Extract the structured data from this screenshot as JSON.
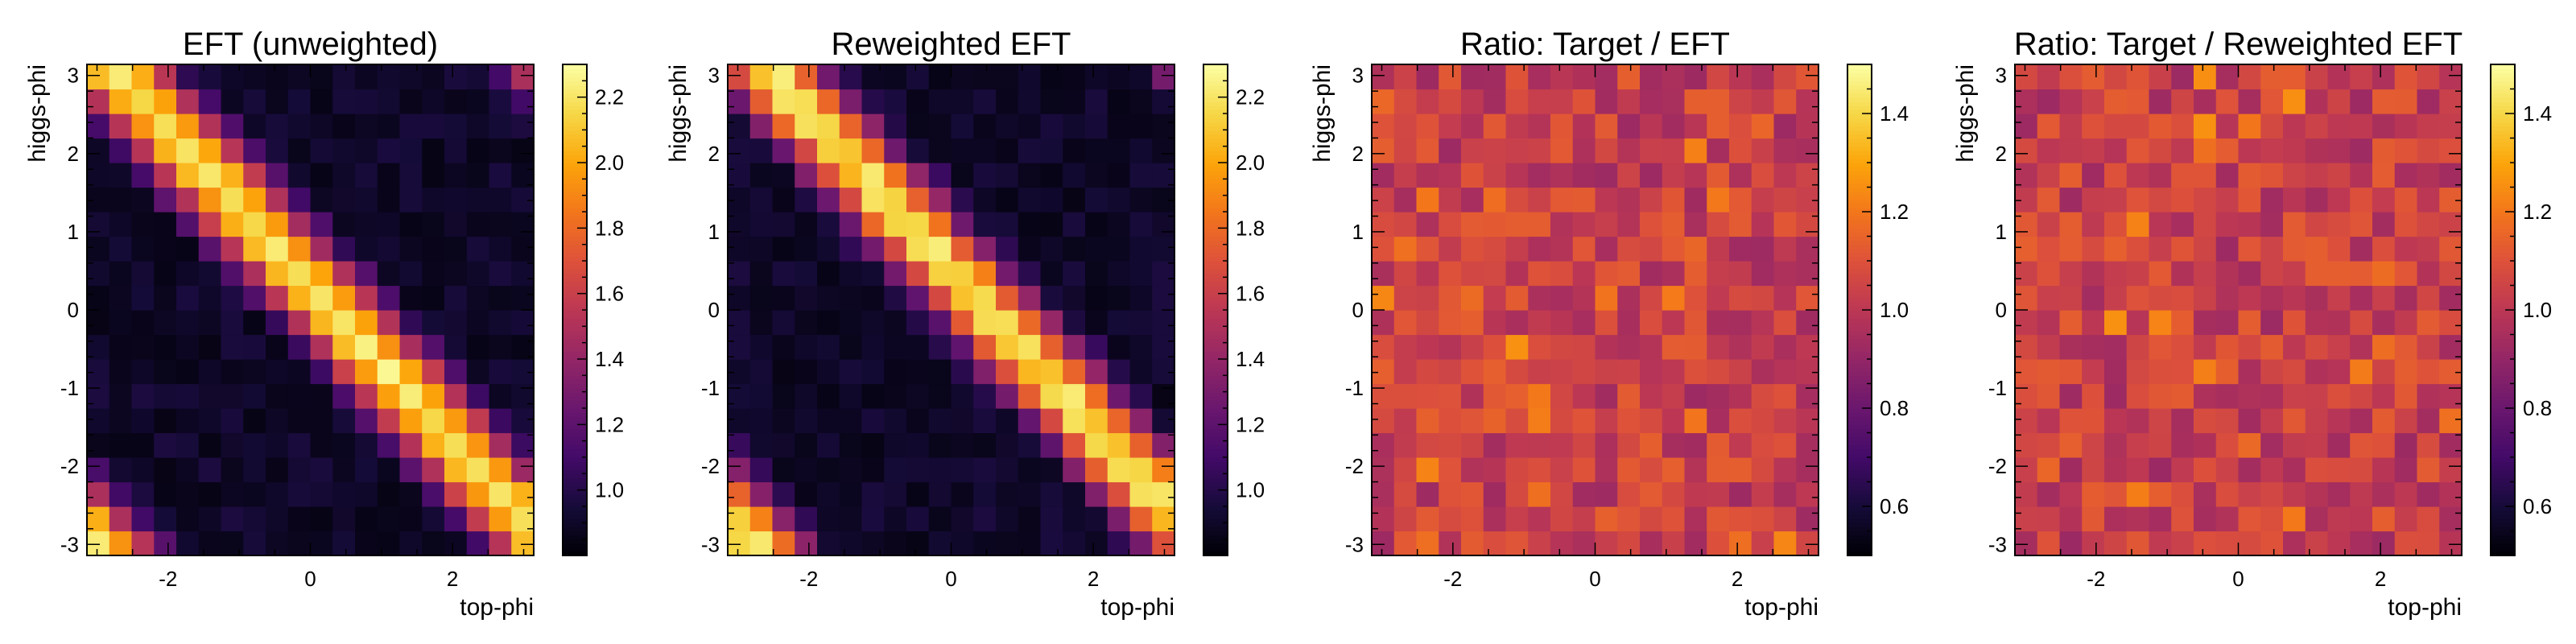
{
  "chart_data": [
    {
      "type": "heatmap",
      "title": "EFT (unweighted)",
      "xlabel": "top-phi",
      "ylabel": "higgs-phi",
      "xlim": [
        -3.14159,
        3.14159
      ],
      "ylim": [
        -3.14159,
        3.14159
      ],
      "x_ticks": [
        -2,
        0,
        2
      ],
      "y_ticks": [
        -3,
        -2,
        -1,
        0,
        1,
        2,
        3
      ],
      "bins": [
        20,
        20
      ],
      "grid": false,
      "colorbar": {
        "colormap": "inferno",
        "zlim": [
          0.8,
          2.3
        ],
        "ticks": [
          1.0,
          1.2,
          1.4,
          1.6,
          1.8,
          2.0,
          2.2
        ]
      },
      "z_model": "z = 0.8 + 1.4 * exp(-(wrap(higgs_phi + top_phi - 0.3))^2 / 0.6); per-bin noise about ±0.08"
    },
    {
      "type": "heatmap",
      "title": "Reweighted EFT",
      "xlabel": "top-phi",
      "ylabel": "higgs-phi",
      "xlim": [
        -3.14159,
        3.14159
      ],
      "ylim": [
        -3.14159,
        3.14159
      ],
      "x_ticks": [
        -2,
        0,
        2
      ],
      "y_ticks": [
        -3,
        -2,
        -1,
        0,
        1,
        2,
        3
      ],
      "bins": [
        20,
        20
      ],
      "grid": false,
      "colorbar": {
        "colormap": "inferno",
        "zlim": [
          0.8,
          2.3
        ],
        "ticks": [
          1.0,
          1.2,
          1.4,
          1.6,
          1.8,
          2.0,
          2.2
        ]
      },
      "z_model": "same band as unweighted, shifted about -0.2 rad in top-phi"
    },
    {
      "type": "heatmap",
      "title": "Ratio: Target / EFT",
      "xlabel": "top-phi",
      "ylabel": "higgs-phi",
      "xlim": [
        -3.14159,
        3.14159
      ],
      "ylim": [
        -3.14159,
        3.14159
      ],
      "x_ticks": [
        -2,
        0,
        2
      ],
      "y_ticks": [
        -3,
        -2,
        -1,
        0,
        1,
        2,
        3
      ],
      "bins": [
        20,
        20
      ],
      "grid": false,
      "colorbar": {
        "colormap": "inferno",
        "zlim": [
          0.5,
          1.5
        ],
        "ticks": [
          0.6,
          0.8,
          1.0,
          1.2,
          1.4
        ]
      },
      "z_model": "ratio about 1.0 with per-bin noise between 0.9 and 1.2"
    },
    {
      "type": "heatmap",
      "title": "Ratio: Target / Reweighted EFT",
      "xlabel": "top-phi",
      "ylabel": "higgs-phi",
      "xlim": [
        -3.14159,
        3.14159
      ],
      "ylim": [
        -3.14159,
        3.14159
      ],
      "x_ticks": [
        -2,
        0,
        2
      ],
      "y_ticks": [
        -3,
        -2,
        -1,
        0,
        1,
        2,
        3
      ],
      "bins": [
        20,
        20
      ],
      "grid": false,
      "colorbar": {
        "colormap": "inferno",
        "zlim": [
          0.5,
          1.5
        ],
        "ticks": [
          0.6,
          0.8,
          1.0,
          1.2,
          1.4
        ]
      },
      "z_model": "ratio about 1.0 with per-bin noise between 0.9 and 1.2"
    }
  ]
}
